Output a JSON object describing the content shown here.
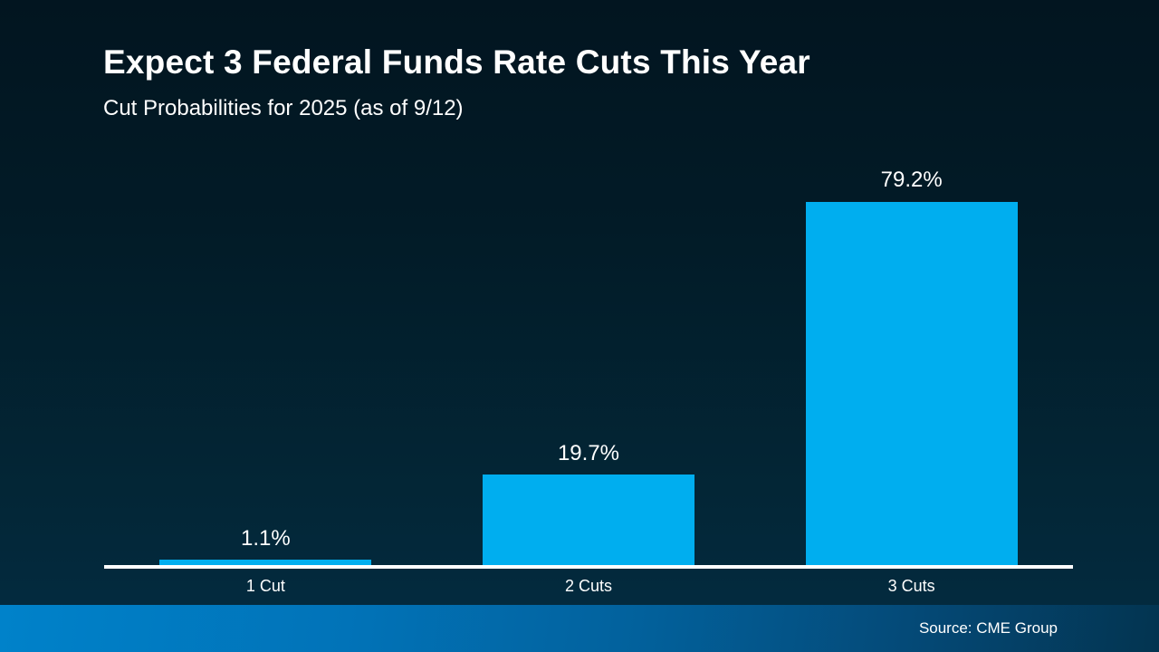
{
  "slide": {
    "title": "Expect 3 Federal Funds Rate Cuts This Year",
    "subtitle": "Cut Probabilities for 2025 (as of 9/12)",
    "source": "Source: CME Group"
  },
  "colors": {
    "bar": "#00AEEF",
    "background_top": "#021520",
    "background_bottom": "#032C42",
    "footer_gradient_left": "#0082CA",
    "footer_gradient_right": "#033450",
    "axis_line": "#FFFFFF",
    "text": "#FFFFFF"
  },
  "chart_data": {
    "type": "bar",
    "title": "Expect 3 Federal Funds Rate Cuts This Year",
    "subtitle": "Cut Probabilities for 2025 (as of 9/12)",
    "categories": [
      "1 Cut",
      "2 Cuts",
      "3 Cuts"
    ],
    "values": [
      1.1,
      19.7,
      79.2
    ],
    "value_labels": [
      "1.1%",
      "19.7%",
      "79.2%"
    ],
    "xlabel": "",
    "ylabel": "",
    "ylim": [
      0,
      100
    ],
    "grid": false,
    "legend": false,
    "bar_color": "#00AEEF",
    "data_label_position": "above-bar",
    "source": "Source: CME Group"
  }
}
